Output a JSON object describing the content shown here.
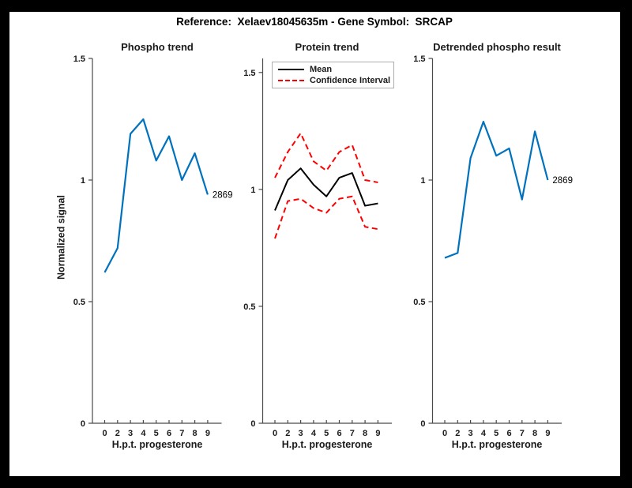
{
  "figure": {
    "title": "Reference:  Xelaev18045635m - Gene Symbol:  SRCAP"
  },
  "chart_data": [
    {
      "type": "line",
      "title": "Phospho trend",
      "xlabel": "H.p.t. progesterone",
      "ylabel": "Normalized signal",
      "x_ticklabels": [
        "0",
        "2",
        "3",
        "4",
        "5",
        "6",
        "7",
        "8",
        "9"
      ],
      "y_ticks": [
        0,
        0.5,
        1,
        1.5
      ],
      "y_ticklabels": [
        "0",
        "0.5",
        "1",
        "1.5"
      ],
      "ylim": [
        0,
        1.5
      ],
      "grid": false,
      "series": [
        {
          "name": "phospho-signal",
          "color": "#0072BD",
          "style": "solid",
          "width": 2.2,
          "values": [
            0.62,
            0.72,
            1.19,
            1.25,
            1.08,
            1.18,
            1.0,
            1.11,
            0.94
          ]
        }
      ],
      "end_label": "2869"
    },
    {
      "type": "line",
      "title": "Protein trend",
      "xlabel": "H.p.t. progesterone",
      "ylabel": "",
      "x_ticklabels": [
        "0",
        "2",
        "3",
        "4",
        "5",
        "6",
        "7",
        "8",
        "9"
      ],
      "y_ticks": [
        0,
        0.5,
        1,
        1.5
      ],
      "y_ticklabels": [
        "0",
        "0.5",
        "1",
        "1.5"
      ],
      "ylim": [
        0,
        1.56
      ],
      "grid": false,
      "legend": {
        "position": "top-left",
        "entries": [
          {
            "label": "Mean",
            "color": "#000000",
            "style": "solid"
          },
          {
            "label": "Confidence Interval",
            "color": "#FF0000",
            "style": "dashed"
          }
        ]
      },
      "series": [
        {
          "name": "mean",
          "color": "#000000",
          "style": "solid",
          "width": 2,
          "values": [
            0.91,
            1.04,
            1.09,
            1.02,
            0.97,
            1.05,
            1.07,
            0.93,
            0.94
          ]
        },
        {
          "name": "confidence-interval-upper",
          "color": "#FF0000",
          "style": "dashed",
          "width": 2,
          "values": [
            1.05,
            1.16,
            1.24,
            1.12,
            1.08,
            1.16,
            1.19,
            1.04,
            1.03
          ]
        },
        {
          "name": "confidence-interval-lower",
          "color": "#FF0000",
          "style": "dashed",
          "width": 2,
          "values": [
            0.79,
            0.95,
            0.96,
            0.92,
            0.9,
            0.96,
            0.97,
            0.84,
            0.83
          ]
        }
      ]
    },
    {
      "type": "line",
      "title": "Detrended phospho result",
      "xlabel": "H.p.t. progesterone",
      "ylabel": "",
      "x_ticklabels": [
        "0",
        "2",
        "3",
        "4",
        "5",
        "6",
        "7",
        "8",
        "9"
      ],
      "y_ticks": [
        0,
        0.5,
        1,
        1.5
      ],
      "y_ticklabels": [
        "0",
        "0.5",
        "1",
        "1.5"
      ],
      "ylim": [
        0,
        1.5
      ],
      "grid": false,
      "series": [
        {
          "name": "detrended-phospho-signal",
          "color": "#0072BD",
          "style": "solid",
          "width": 2.2,
          "values": [
            0.68,
            0.7,
            1.09,
            1.24,
            1.1,
            1.13,
            0.92,
            1.2,
            1.0
          ]
        }
      ],
      "end_label": "2869"
    }
  ]
}
